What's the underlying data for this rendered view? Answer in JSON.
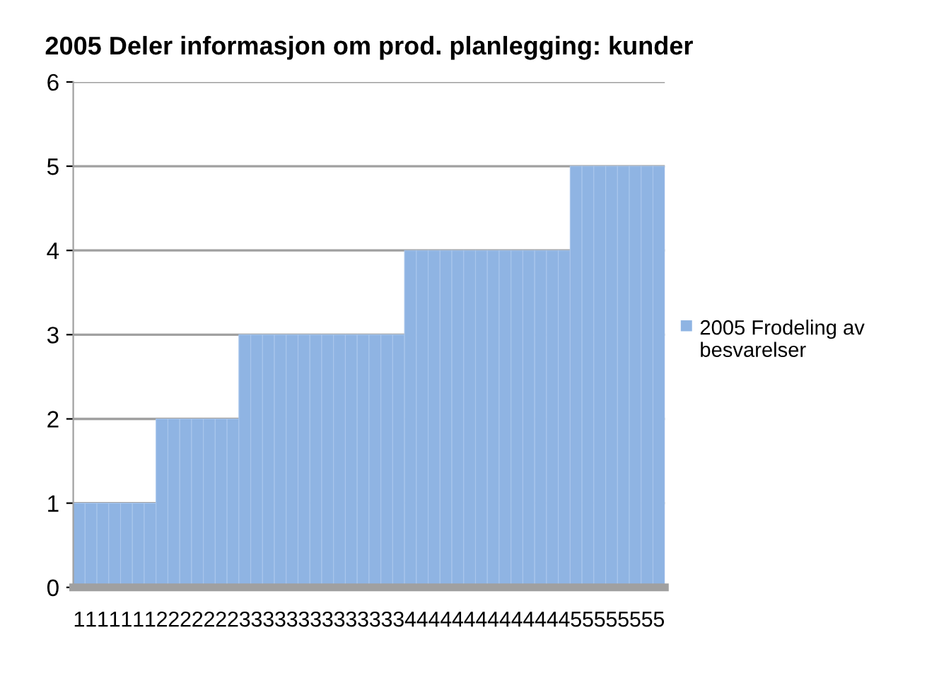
{
  "chart_data": {
    "type": "bar",
    "title": "2005 Deler informasjon om prod. planlegging: kunder",
    "categories": [
      "1",
      "1",
      "1",
      "1",
      "1",
      "1",
      "1",
      "2",
      "2",
      "2",
      "2",
      "2",
      "2",
      "2",
      "3",
      "3",
      "3",
      "3",
      "3",
      "3",
      "3",
      "3",
      "3",
      "3",
      "3",
      "3",
      "3",
      "3",
      "4",
      "4",
      "4",
      "4",
      "4",
      "4",
      "4",
      "4",
      "4",
      "4",
      "4",
      "4",
      "4",
      "4",
      "5",
      "5",
      "5",
      "5",
      "5",
      "5",
      "5",
      "5"
    ],
    "series": [
      {
        "name": "2005 Frodeling av besvarelser",
        "color": "#8fb4e3",
        "values": [
          1,
          1,
          1,
          1,
          1,
          1,
          1,
          2,
          2,
          2,
          2,
          2,
          2,
          2,
          3,
          3,
          3,
          3,
          3,
          3,
          3,
          3,
          3,
          3,
          3,
          3,
          3,
          3,
          4,
          4,
          4,
          4,
          4,
          4,
          4,
          4,
          4,
          4,
          4,
          4,
          4,
          4,
          5,
          5,
          5,
          5,
          5,
          5,
          5,
          5
        ]
      }
    ],
    "ylim": [
      0,
      6
    ],
    "yticks": [
      0,
      1,
      2,
      3,
      4,
      5,
      6
    ],
    "grid": "y",
    "legend": "right"
  }
}
